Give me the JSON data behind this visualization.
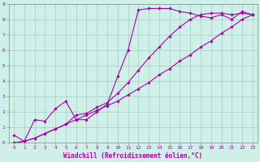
{
  "xlabel": "Windchill (Refroidissement éolien,°C)",
  "xlim": [
    -0.5,
    23.5
  ],
  "ylim": [
    0,
    9
  ],
  "xticks": [
    0,
    1,
    2,
    3,
    4,
    5,
    6,
    7,
    8,
    9,
    10,
    11,
    12,
    13,
    14,
    15,
    16,
    17,
    18,
    19,
    20,
    21,
    22,
    23
  ],
  "yticks": [
    0,
    1,
    2,
    3,
    4,
    5,
    6,
    7,
    8,
    9
  ],
  "background_color": "#cff0e8",
  "grid_color": "#aaccbb",
  "line_color": "#aa00aa",
  "line1_x": [
    0,
    1,
    2,
    3,
    4,
    5,
    6,
    7,
    8,
    9,
    10,
    11,
    12,
    13,
    14,
    15,
    16,
    17,
    18,
    19,
    20,
    21,
    22,
    23
  ],
  "line1_y": [
    0.5,
    0.1,
    1.5,
    1.4,
    2.2,
    2.7,
    1.5,
    1.5,
    2.0,
    2.5,
    4.3,
    6.0,
    8.6,
    8.7,
    8.7,
    8.7,
    8.5,
    8.4,
    8.2,
    8.1,
    8.3,
    8.0,
    8.5,
    8.3
  ],
  "line2_x": [
    0,
    1,
    2,
    3,
    4,
    5,
    6,
    7,
    8,
    9,
    10,
    11,
    12,
    13,
    14,
    15,
    16,
    17,
    18,
    19,
    20,
    21,
    22,
    23
  ],
  "line2_y": [
    0.0,
    0.1,
    0.3,
    0.6,
    0.9,
    1.2,
    1.5,
    1.8,
    2.1,
    2.4,
    2.7,
    3.1,
    3.5,
    3.9,
    4.4,
    4.8,
    5.3,
    5.7,
    6.2,
    6.6,
    7.1,
    7.5,
    8.0,
    8.3
  ],
  "line3_x": [
    0,
    1,
    2,
    3,
    4,
    5,
    6,
    7,
    8,
    9,
    10,
    11,
    12,
    13,
    14,
    15,
    16,
    17,
    18,
    19,
    20,
    21,
    22,
    23
  ],
  "line3_y": [
    0.0,
    0.1,
    0.3,
    0.6,
    0.9,
    1.2,
    1.8,
    1.9,
    2.3,
    2.6,
    3.2,
    3.9,
    4.7,
    5.5,
    6.2,
    6.9,
    7.5,
    8.0,
    8.3,
    8.4,
    8.4,
    8.3,
    8.4,
    8.3
  ],
  "marker": "D",
  "markersize": 1.8,
  "linewidth": 0.8,
  "tick_fontsize": 4.5,
  "xlabel_fontsize": 5.5,
  "spine_color": "#888888"
}
